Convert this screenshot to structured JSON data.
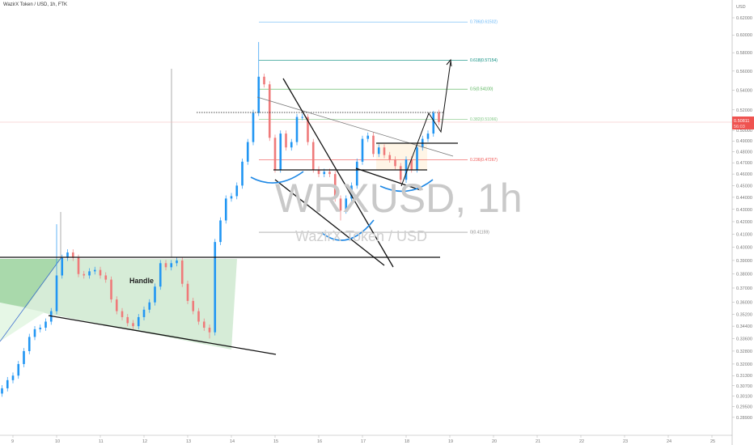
{
  "header": {
    "title": "WazirX Token / USD, 1h, FTK"
  },
  "watermark": {
    "symbol": "WRXUSD, 1h",
    "name": "WazirX Token / USD"
  },
  "price_tag": {
    "price": "0.50811",
    "countdown": "56:03",
    "color": "#ef5350"
  },
  "currency_label": "USD",
  "annotations": {
    "handle": "Handle"
  },
  "colors": {
    "up": "#2196f3",
    "down": "#ef7a7a",
    "zone": "#c8e6c9"
  },
  "chart_data": {
    "type": "candlestick",
    "title": "WazirX Token / USD, 1h, FTK",
    "y_scale": "log",
    "ylim": [
      0.285,
      0.63
    ],
    "grid": false,
    "x_ticks": [
      "9",
      "10",
      "11",
      "12",
      "13",
      "14",
      "15",
      "16",
      "17",
      "18",
      "19",
      "20",
      "21",
      "22",
      "23",
      "24",
      "25"
    ],
    "y_ticks": [
      "0.62000",
      "0.60000",
      "0.58000",
      "0.56000",
      "0.54000",
      "0.52000",
      "0.50000",
      "0.49000",
      "0.48000",
      "0.47000",
      "0.46000",
      "0.45000",
      "0.44000",
      "0.43000",
      "0.42000",
      "0.41000",
      "0.40000",
      "0.39000",
      "0.38000",
      "0.37000",
      "0.36000",
      "0.35200",
      "0.34400",
      "0.33600",
      "0.32800",
      "0.32000",
      "0.31300",
      "0.30700",
      "0.30100",
      "0.29500",
      "0.28900"
    ],
    "start": "8 18:00",
    "close": [
      0.3055,
      0.3103,
      0.313,
      0.32,
      0.328,
      0.337,
      0.342,
      0.343,
      0.347,
      0.354,
      0.379,
      0.392,
      0.396,
      0.392,
      0.38,
      0.379,
      0.382,
      0.383,
      0.379,
      0.376,
      0.362,
      0.354,
      0.35,
      0.346,
      0.344,
      0.35,
      0.355,
      0.36,
      0.371,
      0.388,
      0.385,
      0.388,
      0.39,
      0.373,
      0.361,
      0.354,
      0.347,
      0.343,
      0.34,
      0.404,
      0.421,
      0.439,
      0.441,
      0.45,
      0.471,
      0.489,
      0.517,
      0.554,
      0.546,
      0.493,
      0.464,
      0.497,
      0.484,
      0.489,
      0.513,
      0.513,
      0.489,
      0.464,
      0.46,
      0.462,
      0.46,
      0.439,
      0.429,
      0.439,
      0.45,
      0.471,
      0.492,
      0.495,
      0.478,
      0.484,
      0.477,
      0.473,
      0.467,
      0.455,
      0.473,
      0.464,
      0.484,
      0.492,
      0.497,
      0.517,
      0.508
    ],
    "wick_extremes": [
      {
        "index": 10,
        "high": 0.418
      },
      {
        "index": 38,
        "low": 0.336
      },
      {
        "index": 47,
        "high": 0.592
      },
      {
        "index": 62,
        "low": 0.421
      },
      {
        "index": 79,
        "high": 0.519
      }
    ],
    "fib_levels": [
      {
        "label": "0.786(0.61502)",
        "value": 0.61502,
        "color": "#64b5f6"
      },
      {
        "label": "0.618(0.57154)",
        "value": 0.57154,
        "color": "#00897b"
      },
      {
        "label": "0.5(0.54100)",
        "value": 0.541,
        "color": "#4caf50"
      },
      {
        "label": "0.382(0.51066)",
        "value": 0.51066,
        "color": "#81c784"
      },
      {
        "label": "0.236(0.47267)",
        "value": 0.47267,
        "color": "#ef5350"
      },
      {
        "label": "0(0.41159)",
        "value": 0.41159,
        "color": "#888888"
      }
    ],
    "last_price": 0.50811
  }
}
